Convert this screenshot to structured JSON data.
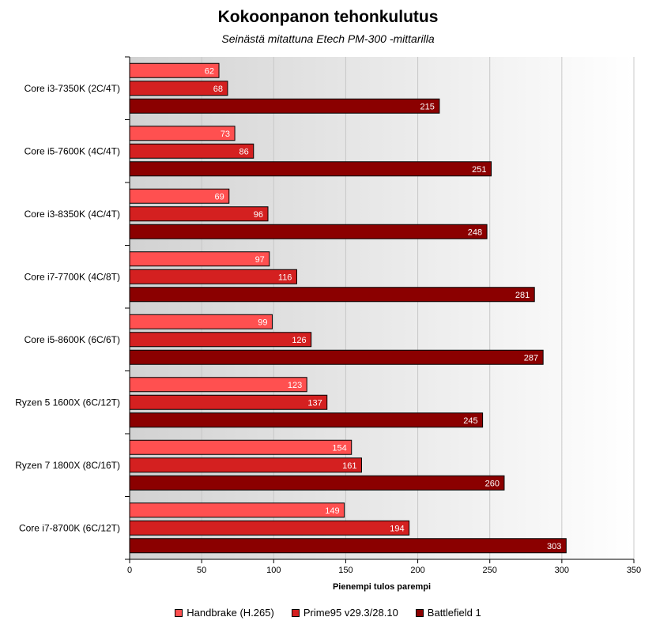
{
  "chart_data": {
    "type": "bar",
    "orientation": "horizontal",
    "title": "Kokoonpanon tehonkulutus",
    "subtitle": "Seinästä mitattuna Etech PM-300 -mittarilla",
    "xlabel": "Pienempi tulos parempi",
    "ylabel": "",
    "xlim": [
      0,
      350
    ],
    "xticks": [
      0,
      50,
      100,
      150,
      200,
      250,
      300,
      350
    ],
    "grid": "vertical",
    "legend_position": "bottom",
    "categories": [
      "Core i3-7350K (2C/4T)",
      "Core i5-7600K (4C/4T)",
      "Core i3-8350K (4C/4T)",
      "Core i7-7700K (4C/8T)",
      "Core i5-8600K (6C/6T)",
      "Ryzen 5 1600X (6C/12T)",
      "Ryzen 7 1800X (8C/16T)",
      "Core i7-8700K (6C/12T)"
    ],
    "series": [
      {
        "name": "Handbrake (H.265)",
        "color": "#ff5050",
        "label_color": "#ffffff",
        "values": [
          62,
          73,
          69,
          97,
          99,
          123,
          154,
          149
        ]
      },
      {
        "name": "Prime95 v29.3/28.10",
        "color": "#d42020",
        "label_color": "#ffffff",
        "values": [
          68,
          86,
          96,
          116,
          126,
          137,
          161,
          194
        ]
      },
      {
        "name": "Battlefield 1",
        "color": "#8b0000",
        "label_color": "#ffffff",
        "values": [
          215,
          251,
          248,
          281,
          287,
          245,
          260,
          303
        ]
      }
    ]
  }
}
